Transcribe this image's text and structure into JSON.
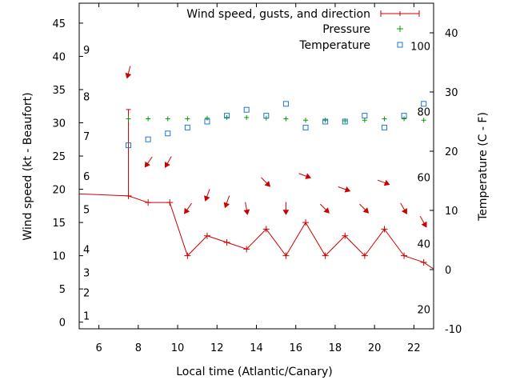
{
  "chart_data": {
    "type": "line",
    "xlabel": "Local time (Atlantic/Canary)",
    "ylabel_left": "Wind speed (kt - Beaufort)",
    "ylabel_right": "Temperature (C - F)",
    "xlim": [
      5,
      23
    ],
    "ylim_left": [
      -1,
      48
    ],
    "ylim_right": [
      -10,
      45
    ],
    "x_ticks": [
      "6",
      "8",
      "10",
      "12",
      "14",
      "16",
      "18",
      "20",
      "22"
    ],
    "y_left_ticks": [
      "0",
      "5",
      "10",
      "15",
      "20",
      "25",
      "30",
      "35",
      "40",
      "45"
    ],
    "y_right_ticks": [
      "-10",
      "0",
      "10",
      "20",
      "30",
      "40"
    ],
    "beaufort_labels": [
      {
        "label": "1",
        "kt": 1
      },
      {
        "label": "2",
        "kt": 4.5
      },
      {
        "label": "3",
        "kt": 7.5
      },
      {
        "label": "4",
        "kt": 11
      },
      {
        "label": "5",
        "kt": 17
      },
      {
        "label": "6",
        "kt": 22
      },
      {
        "label": "7",
        "kt": 28
      },
      {
        "label": "8",
        "kt": 34
      },
      {
        "label": "9",
        "kt": 41
      }
    ],
    "fahrenheit_labels": [
      {
        "label": "20",
        "c": -6.7
      },
      {
        "label": "40",
        "c": 4.4
      },
      {
        "label": "60",
        "c": 15.6
      },
      {
        "label": "80",
        "c": 26.7
      },
      {
        "label": "100",
        "c": 37.8
      }
    ],
    "legend": {
      "position": "top-right",
      "entries": [
        {
          "label": "Wind speed, gusts, and direction",
          "color": "#cc0000"
        },
        {
          "label": "Pressure",
          "color": "#00a000"
        },
        {
          "label": "Temperature",
          "color": "#1f77d0"
        }
      ]
    },
    "series": [
      {
        "name": "Wind speed, gusts, and direction",
        "color": "#cc0000",
        "x": [
          5,
          7.5,
          8.5,
          9.6,
          10.5,
          11.5,
          12.5,
          13.5,
          14.5,
          15.5,
          16.5,
          17.5,
          18.5,
          19.5,
          20.5,
          21.5,
          22.5,
          23
        ],
        "wind": [
          19.3,
          19,
          18,
          18,
          10,
          13,
          12,
          11,
          14,
          10,
          15,
          10,
          13,
          10,
          14,
          10,
          9,
          8
        ],
        "gust_bar": {
          "x": 7.5,
          "low": 19,
          "high": 32
        }
      },
      {
        "name": "Pressure",
        "color": "#00a000",
        "x": [
          7.5,
          8.5,
          9.5,
          10.5,
          11.5,
          12.5,
          13.5,
          14.5,
          15.5,
          16.5,
          17.5,
          18.5,
          19.5,
          20.5,
          21.5,
          22.5
        ],
        "y_kt": [
          30.6,
          30.6,
          30.6,
          30.6,
          30.7,
          30.8,
          30.8,
          30.7,
          30.6,
          30.4,
          30.4,
          30.3,
          30.4,
          30.6,
          30.6,
          30.4
        ]
      },
      {
        "name": "Temperature",
        "color": "#1f77d0",
        "x": [
          7.5,
          8.5,
          9.5,
          10.5,
          11.5,
          12.5,
          13.5,
          14.5,
          15.5,
          16.5,
          17.5,
          18.5,
          19.5,
          20.5,
          21.5,
          22.5
        ],
        "temp_c": [
          21,
          22,
          23,
          24,
          25,
          26,
          27,
          26,
          28,
          24,
          25,
          25,
          26,
          24,
          26,
          28
        ]
      }
    ],
    "wind_direction_arrows": [
      {
        "x": 7.5,
        "y_kt": 37.5,
        "angle_deg": 15
      },
      {
        "x": 8.5,
        "y_kt": 24.0,
        "angle_deg": 35
      },
      {
        "x": 9.5,
        "y_kt": 24.0,
        "angle_deg": 30
      },
      {
        "x": 10.5,
        "y_kt": 17.0,
        "angle_deg": 35
      },
      {
        "x": 11.5,
        "y_kt": 19.0,
        "angle_deg": 20
      },
      {
        "x": 12.5,
        "y_kt": 18.0,
        "angle_deg": 20
      },
      {
        "x": 13.5,
        "y_kt": 17.0,
        "angle_deg": -10
      },
      {
        "x": 14.5,
        "y_kt": 21.0,
        "angle_deg": -45
      },
      {
        "x": 15.5,
        "y_kt": 17.0,
        "angle_deg": 0
      },
      {
        "x": 16.5,
        "y_kt": 22.0,
        "angle_deg": -70
      },
      {
        "x": 17.5,
        "y_kt": 17.0,
        "angle_deg": -45
      },
      {
        "x": 18.5,
        "y_kt": 20.0,
        "angle_deg": -70
      },
      {
        "x": 19.5,
        "y_kt": 17.0,
        "angle_deg": -45
      },
      {
        "x": 20.5,
        "y_kt": 21.0,
        "angle_deg": -70
      },
      {
        "x": 21.5,
        "y_kt": 17.0,
        "angle_deg": -30
      },
      {
        "x": 22.5,
        "y_kt": 15.0,
        "angle_deg": -30
      }
    ]
  }
}
